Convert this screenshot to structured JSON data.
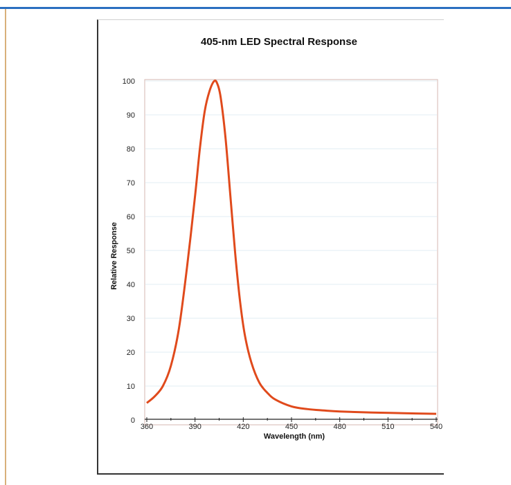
{
  "chart_data": {
    "type": "line",
    "title": "405-nm LED Spectral Response",
    "xlabel": "Wavelength (nm)",
    "ylabel": "Relative Response",
    "xlim": [
      360,
      540
    ],
    "ylim": [
      0,
      100
    ],
    "x_ticks": [
      360,
      390,
      420,
      450,
      480,
      510,
      540
    ],
    "y_ticks": [
      0,
      10,
      20,
      30,
      40,
      50,
      60,
      70,
      80,
      90,
      100
    ],
    "grid": true,
    "line_color": "#e04a1c",
    "series": [
      {
        "x": [
          360,
          365,
          370,
          375,
          380,
          385,
          390,
          393,
          396,
          399,
          402,
          404,
          406,
          409,
          412,
          415,
          418,
          421,
          425,
          430,
          435,
          440,
          450,
          460,
          470,
          480,
          500,
          520,
          540
        ],
        "values": [
          5,
          7,
          10,
          16,
          27,
          45,
          66,
          80,
          91,
          97,
          100,
          99,
          95,
          83,
          66,
          49,
          35,
          25,
          17,
          11,
          8,
          6,
          4,
          3.2,
          2.8,
          2.5,
          2.2,
          2,
          1.8
        ]
      }
    ]
  }
}
